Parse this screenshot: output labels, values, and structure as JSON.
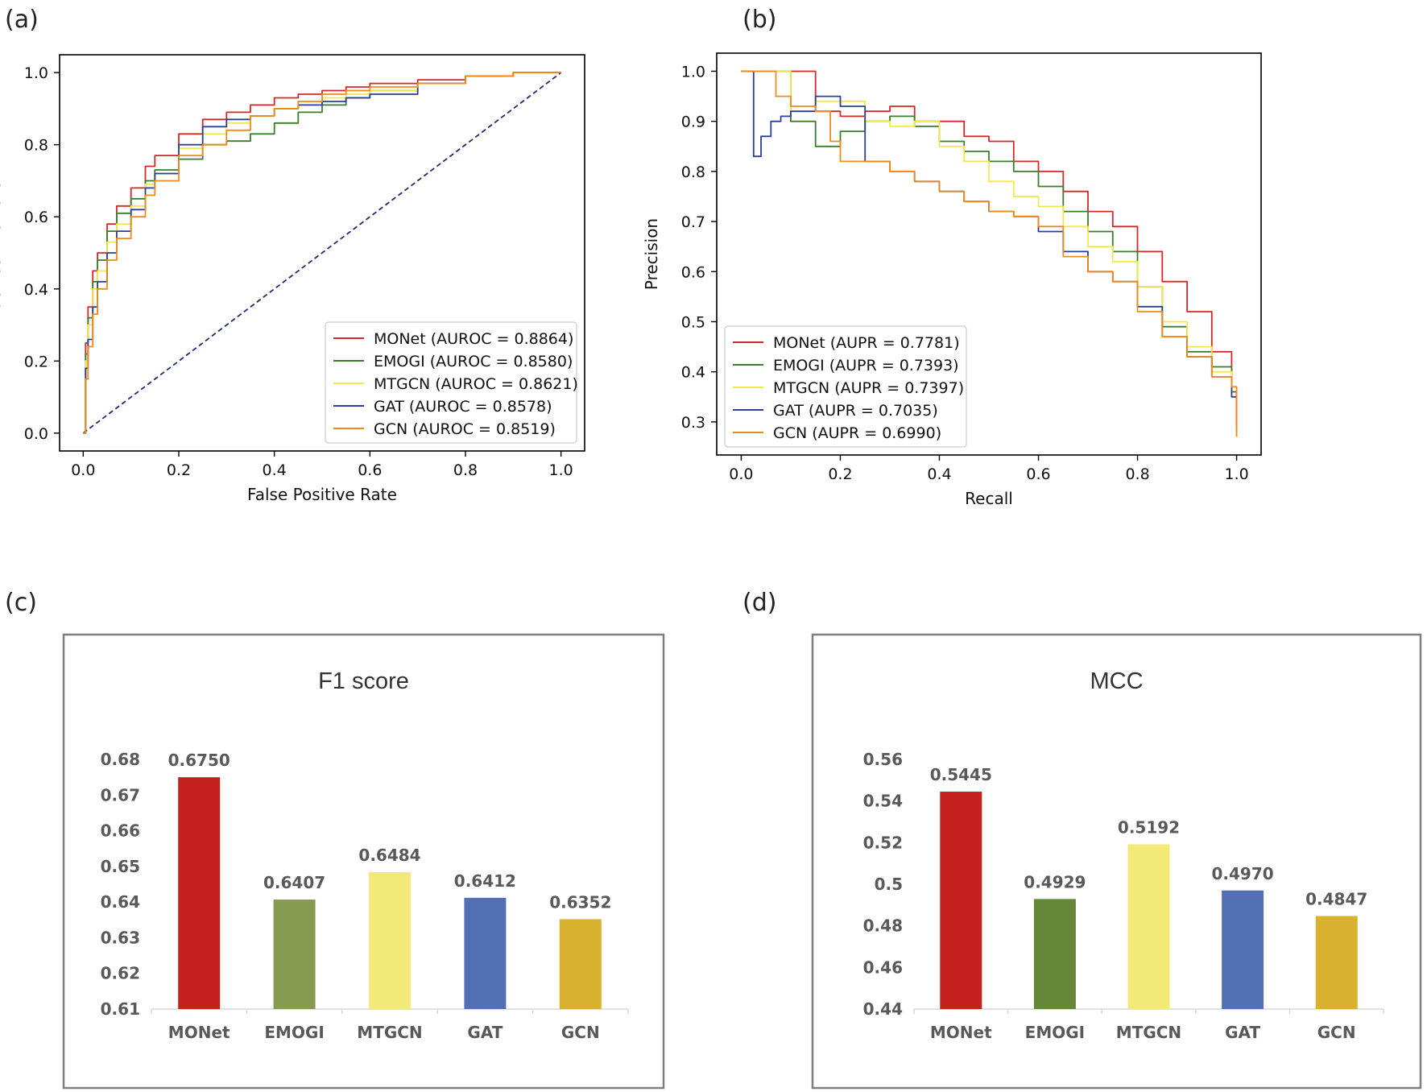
{
  "panels": {
    "a": "(a)",
    "b": "(b)",
    "c": "(c)",
    "d": "(d)"
  },
  "colors": {
    "MONet": "#d62728",
    "EMOGI": "#3a7d2a",
    "MTGCN": "#f2e84b",
    "GAT": "#2a3f9a",
    "GCN": "#f08a1a",
    "diagonal": "#1f2a6b",
    "bar_MONet": "#c3201e",
    "bar_EMOGI_c": "#869a52",
    "bar_EMOGI_d": "#65873a",
    "bar_MTGCN": "#f3e978",
    "bar_GAT": "#5470b5",
    "bar_GCN": "#d8b22e"
  },
  "chart_data": [
    {
      "id": "a",
      "type": "line",
      "title": "",
      "xlabel": "False Positive Rate",
      "ylabel": "True Positive Rate",
      "xlim": [
        0,
        1
      ],
      "ylim": [
        0,
        1
      ],
      "xticks": [
        "0.0",
        "0.2",
        "0.4",
        "0.6",
        "0.8",
        "1.0"
      ],
      "yticks": [
        "0.0",
        "0.2",
        "0.4",
        "0.6",
        "0.8",
        "1.0"
      ],
      "legend_position": "lower-right",
      "grid": false,
      "diagonal": [
        [
          0,
          0
        ],
        [
          1,
          1
        ]
      ],
      "series": [
        {
          "name": "MONet (AUROC = 0.8864)",
          "key": "MONet",
          "x": [
            0,
            0.005,
            0.01,
            0.02,
            0.03,
            0.05,
            0.07,
            0.1,
            0.13,
            0.15,
            0.2,
            0.25,
            0.3,
            0.35,
            0.4,
            0.45,
            0.5,
            0.55,
            0.6,
            0.7,
            0.8,
            0.9,
            1.0
          ],
          "y": [
            0,
            0.25,
            0.35,
            0.45,
            0.5,
            0.58,
            0.63,
            0.68,
            0.74,
            0.77,
            0.83,
            0.87,
            0.89,
            0.91,
            0.93,
            0.94,
            0.95,
            0.96,
            0.97,
            0.98,
            0.99,
            1.0,
            1.0
          ]
        },
        {
          "name": "EMOGI (AUROC = 0.8580)",
          "key": "EMOGI",
          "x": [
            0,
            0.005,
            0.01,
            0.02,
            0.03,
            0.05,
            0.07,
            0.1,
            0.13,
            0.15,
            0.2,
            0.25,
            0.3,
            0.35,
            0.4,
            0.45,
            0.5,
            0.55,
            0.6,
            0.7,
            0.8,
            0.9,
            1.0
          ],
          "y": [
            0,
            0.22,
            0.32,
            0.42,
            0.48,
            0.56,
            0.61,
            0.65,
            0.7,
            0.73,
            0.76,
            0.8,
            0.81,
            0.83,
            0.86,
            0.89,
            0.91,
            0.93,
            0.95,
            0.97,
            0.99,
            1.0,
            1.0
          ]
        },
        {
          "name": "MTGCN (AUROC = 0.8621)",
          "key": "MTGCN",
          "x": [
            0,
            0.005,
            0.01,
            0.02,
            0.03,
            0.05,
            0.07,
            0.1,
            0.13,
            0.15,
            0.2,
            0.25,
            0.3,
            0.35,
            0.4,
            0.45,
            0.5,
            0.55,
            0.6,
            0.7,
            0.8,
            0.9,
            1.0
          ],
          "y": [
            0,
            0.2,
            0.3,
            0.4,
            0.45,
            0.53,
            0.58,
            0.63,
            0.69,
            0.72,
            0.79,
            0.83,
            0.86,
            0.88,
            0.9,
            0.92,
            0.93,
            0.94,
            0.95,
            0.97,
            0.99,
            1.0,
            1.0
          ]
        },
        {
          "name": "GAT (AUROC = 0.8578)",
          "key": "GAT",
          "x": [
            0,
            0.005,
            0.01,
            0.02,
            0.03,
            0.05,
            0.07,
            0.1,
            0.13,
            0.15,
            0.2,
            0.25,
            0.3,
            0.35,
            0.4,
            0.45,
            0.5,
            0.55,
            0.6,
            0.7,
            0.8,
            0.9,
            1.0
          ],
          "y": [
            0,
            0.18,
            0.26,
            0.35,
            0.42,
            0.5,
            0.56,
            0.62,
            0.68,
            0.72,
            0.8,
            0.85,
            0.87,
            0.88,
            0.9,
            0.91,
            0.92,
            0.93,
            0.94,
            0.97,
            0.99,
            1.0,
            1.0
          ]
        },
        {
          "name": "GCN (AUROC = 0.8519)",
          "key": "GCN",
          "x": [
            0,
            0.005,
            0.01,
            0.02,
            0.03,
            0.05,
            0.07,
            0.1,
            0.13,
            0.15,
            0.2,
            0.25,
            0.3,
            0.35,
            0.4,
            0.45,
            0.5,
            0.55,
            0.6,
            0.7,
            0.8,
            0.9,
            1.0
          ],
          "y": [
            0,
            0.15,
            0.24,
            0.33,
            0.4,
            0.48,
            0.54,
            0.6,
            0.66,
            0.7,
            0.77,
            0.8,
            0.84,
            0.88,
            0.9,
            0.92,
            0.94,
            0.95,
            0.96,
            0.97,
            0.99,
            1.0,
            1.0
          ]
        }
      ]
    },
    {
      "id": "b",
      "type": "line",
      "title": "",
      "xlabel": "Recall",
      "ylabel": "Precision",
      "xlim": [
        0,
        1
      ],
      "ylim": [
        0.27,
        1.0
      ],
      "xticks": [
        "0.0",
        "0.2",
        "0.4",
        "0.6",
        "0.8",
        "1.0"
      ],
      "yticks": [
        "0.3",
        "0.4",
        "0.5",
        "0.6",
        "0.7",
        "0.8",
        "0.9",
        "1.0"
      ],
      "legend_position": "lower-left",
      "grid": false,
      "series": [
        {
          "name": "MONet (AUPR = 0.7781)",
          "key": "MONet",
          "x": [
            0,
            0.12,
            0.15,
            0.2,
            0.25,
            0.3,
            0.35,
            0.4,
            0.45,
            0.5,
            0.55,
            0.6,
            0.65,
            0.7,
            0.75,
            0.8,
            0.85,
            0.9,
            0.95,
            0.99,
            1.0
          ],
          "y": [
            1.0,
            1.0,
            0.92,
            0.91,
            0.92,
            0.93,
            0.9,
            0.9,
            0.87,
            0.86,
            0.82,
            0.8,
            0.76,
            0.72,
            0.69,
            0.64,
            0.58,
            0.52,
            0.44,
            0.36,
            0.28
          ]
        },
        {
          "name": "EMOGI (AUPR = 0.7393)",
          "key": "EMOGI",
          "x": [
            0,
            0.08,
            0.1,
            0.15,
            0.2,
            0.25,
            0.3,
            0.35,
            0.4,
            0.45,
            0.5,
            0.55,
            0.6,
            0.65,
            0.7,
            0.75,
            0.8,
            0.85,
            0.9,
            0.95,
            0.99,
            1.0
          ],
          "y": [
            1.0,
            1.0,
            0.9,
            0.85,
            0.88,
            0.9,
            0.91,
            0.89,
            0.86,
            0.84,
            0.82,
            0.8,
            0.77,
            0.72,
            0.68,
            0.64,
            0.57,
            0.49,
            0.44,
            0.41,
            0.36,
            0.28
          ]
        },
        {
          "name": "MTGCN (AUPR = 0.7397)",
          "key": "MTGCN",
          "x": [
            0,
            0.08,
            0.1,
            0.15,
            0.2,
            0.25,
            0.3,
            0.35,
            0.4,
            0.45,
            0.5,
            0.55,
            0.6,
            0.65,
            0.7,
            0.75,
            0.8,
            0.85,
            0.9,
            0.95,
            0.99,
            1.0
          ],
          "y": [
            1.0,
            1.0,
            0.92,
            0.94,
            0.94,
            0.9,
            0.89,
            0.9,
            0.85,
            0.82,
            0.78,
            0.75,
            0.73,
            0.69,
            0.65,
            0.62,
            0.57,
            0.5,
            0.45,
            0.4,
            0.35,
            0.28
          ]
        },
        {
          "name": "GAT (AUPR = 0.7035)",
          "key": "GAT",
          "x": [
            0,
            0.02,
            0.025,
            0.04,
            0.06,
            0.08,
            0.1,
            0.15,
            0.2,
            0.25,
            0.3,
            0.35,
            0.4,
            0.45,
            0.5,
            0.55,
            0.6,
            0.65,
            0.7,
            0.75,
            0.8,
            0.85,
            0.9,
            0.95,
            0.99,
            1.0
          ],
          "y": [
            1.0,
            1.0,
            0.83,
            0.87,
            0.9,
            0.91,
            0.92,
            0.95,
            0.93,
            0.82,
            0.8,
            0.78,
            0.76,
            0.74,
            0.72,
            0.71,
            0.68,
            0.64,
            0.6,
            0.58,
            0.53,
            0.47,
            0.43,
            0.39,
            0.35,
            0.29
          ]
        },
        {
          "name": "GCN (AUPR = 0.6990)",
          "key": "GCN",
          "x": [
            0,
            0.05,
            0.07,
            0.1,
            0.15,
            0.18,
            0.2,
            0.25,
            0.3,
            0.35,
            0.4,
            0.45,
            0.5,
            0.55,
            0.6,
            0.65,
            0.7,
            0.75,
            0.8,
            0.85,
            0.9,
            0.95,
            0.99,
            1.0
          ],
          "y": [
            1.0,
            1.0,
            0.95,
            0.93,
            0.92,
            0.86,
            0.82,
            0.82,
            0.8,
            0.78,
            0.76,
            0.74,
            0.72,
            0.71,
            0.69,
            0.63,
            0.6,
            0.58,
            0.52,
            0.47,
            0.43,
            0.39,
            0.37,
            0.27
          ]
        }
      ]
    },
    {
      "id": "c",
      "type": "bar",
      "title": "F1 score",
      "xlabel": "",
      "ylabel": "",
      "ylim": [
        0.61,
        0.68
      ],
      "yticks": [
        "0.61",
        "0.62",
        "0.63",
        "0.64",
        "0.65",
        "0.66",
        "0.67",
        "0.68"
      ],
      "categories": [
        "MONet",
        "EMOGI",
        "MTGCN",
        "GAT",
        "GCN"
      ],
      "values": [
        0.675,
        0.6407,
        0.6484,
        0.6412,
        0.6352
      ],
      "labels": [
        "0.6750",
        "0.6407",
        "0.6484",
        "0.6412",
        "0.6352"
      ],
      "bar_colors": [
        "bar_MONet",
        "bar_EMOGI_c",
        "bar_MTGCN",
        "bar_GAT",
        "bar_GCN"
      ]
    },
    {
      "id": "d",
      "type": "bar",
      "title": "MCC",
      "xlabel": "",
      "ylabel": "",
      "ylim": [
        0.44,
        0.56
      ],
      "yticks": [
        "0.44",
        "0.46",
        "0.48",
        "0.5",
        "0.52",
        "0.54",
        "0.56"
      ],
      "categories": [
        "MONet",
        "EMOGI",
        "MTGCN",
        "GAT",
        "GCN"
      ],
      "values": [
        0.5445,
        0.4929,
        0.5192,
        0.497,
        0.4847
      ],
      "labels": [
        "0.5445",
        "0.4929",
        "0.5192",
        "0.4970",
        "0.4847"
      ],
      "bar_colors": [
        "bar_MONet",
        "bar_EMOGI_d",
        "bar_MTGCN",
        "bar_GAT",
        "bar_GCN"
      ]
    }
  ]
}
